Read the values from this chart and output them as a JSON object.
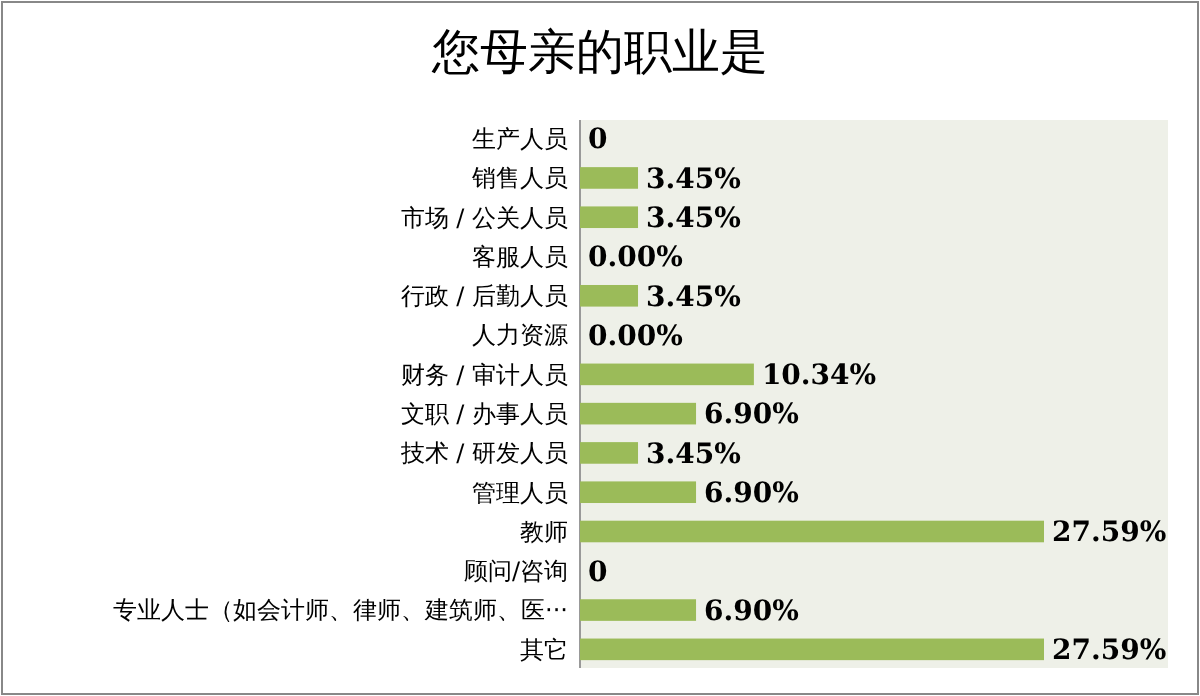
{
  "chart_data": {
    "type": "bar",
    "orientation": "horizontal",
    "title": "您母亲的职业是",
    "categories": [
      "生产人员",
      "销售人员",
      "市场 / 公关人员",
      "客服人员",
      "行政 / 后勤人员",
      "人力资源",
      "财务 / 审计人员",
      "文职 / 办事人员",
      "技术 / 研发人员",
      "管理人员",
      "教师",
      "顾问/咨询",
      "专业人士（如会计师、律师、建筑师、医···",
      "其它"
    ],
    "values": [
      0,
      3.45,
      3.45,
      0,
      3.45,
      0,
      10.34,
      6.9,
      3.45,
      6.9,
      27.59,
      0,
      6.9,
      27.59
    ],
    "value_labels": [
      "0",
      "3.45%",
      "3.45%",
      "0.00%",
      "3.45%",
      "0.00%",
      "10.34%",
      "6.90%",
      "3.45%",
      "6.90%",
      "27.59%",
      "0",
      "6.90%",
      "27.59%"
    ],
    "color": "#9bbb59"
  }
}
